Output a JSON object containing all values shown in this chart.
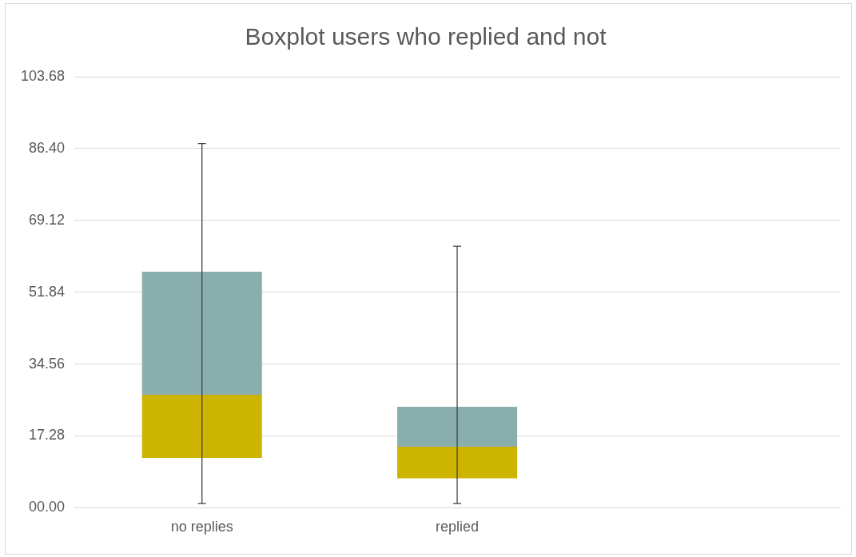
{
  "chart_data": {
    "type": "box",
    "title": "Boxplot users who replied and not",
    "categories": [
      "no replies",
      "replied",
      null
    ],
    "series": [
      {
        "color": "#8aaeae",
        "colors": [
          "#cdb400",
          "#cdb400",
          null
        ],
        "boxes": [
          {
            "low": 1.0,
            "q1": 12.0,
            "median": 27.2,
            "q3": 56.8,
            "high": 87.6
          },
          {
            "low": 1.0,
            "q1": 7.1,
            "median": 14.7,
            "q3": 24.3,
            "high": 62.9
          },
          null
        ]
      }
    ],
    "ylim": [
      0,
      103.68
    ],
    "yticks": [
      {
        "value": 0,
        "label": "00.00"
      },
      17.28,
      34.56,
      51.84,
      69.12,
      {
        "value": 86.4,
        "label": "86.40"
      },
      103.68
    ],
    "grid": "y",
    "legend": false
  }
}
